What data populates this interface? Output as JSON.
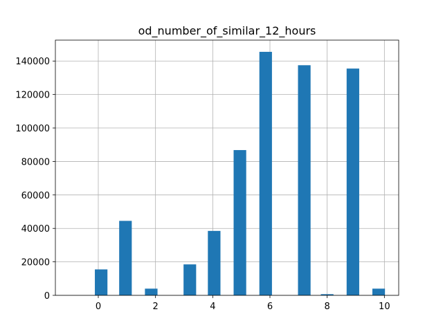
{
  "chart_data": {
    "type": "bar",
    "title": "od_number_of_similar_12_hours",
    "xlabel": "",
    "ylabel": "",
    "xlim": [
      -1.5,
      10.5
    ],
    "ylim": [
      0,
      152500
    ],
    "grid": true,
    "color": "#1f77b4",
    "bar_width": 0.44,
    "x_ticks": [
      0,
      2,
      4,
      6,
      8,
      10
    ],
    "y_ticks": [
      0,
      20000,
      40000,
      60000,
      80000,
      100000,
      120000,
      140000
    ],
    "x_tick_labels": [
      "0",
      "2",
      "4",
      "6",
      "8",
      "10"
    ],
    "y_tick_labels": [
      "0",
      "20000",
      "40000",
      "60000",
      "80000",
      "100000",
      "120000",
      "140000"
    ],
    "bars": [
      {
        "x": 0.1,
        "value": 15500
      },
      {
        "x": 0.95,
        "value": 44500
      },
      {
        "x": 1.85,
        "value": 4000
      },
      {
        "x": 3.2,
        "value": 18500
      },
      {
        "x": 4.05,
        "value": 38500
      },
      {
        "x": 4.95,
        "value": 86800
      },
      {
        "x": 5.85,
        "value": 145500
      },
      {
        "x": 7.2,
        "value": 137500
      },
      {
        "x": 8.0,
        "value": 700
      },
      {
        "x": 8.9,
        "value": 135500
      },
      {
        "x": 9.8,
        "value": 4000
      }
    ]
  }
}
